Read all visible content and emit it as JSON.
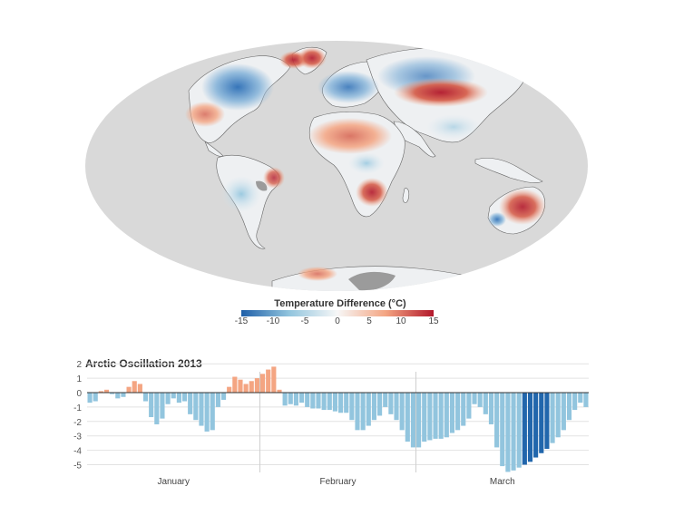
{
  "legend": {
    "title": "Temperature Difference (°C)",
    "ticks": [
      "-15",
      "-10",
      "-5",
      "0",
      "5",
      "10",
      "15"
    ],
    "colors": {
      "cold": "#1f5fa8",
      "neutral": "#f4f4f2",
      "warm": "#b2182b"
    }
  },
  "map": {
    "colors": {
      "ocean": "#d9d9d9",
      "land": "#eef0f2",
      "no_data": "#9b9b9b",
      "coast": "#666666"
    }
  },
  "chart_data": {
    "type": "bar",
    "title": "Arctic Oscillation 2013",
    "xlabel": "",
    "ylabel": "",
    "ylim": [
      -5.6,
      2.2
    ],
    "yticks": [
      "2",
      "1",
      "0",
      "-1",
      "-2",
      "-3",
      "-4",
      "-5"
    ],
    "month_labels": [
      "January",
      "February",
      "March"
    ],
    "month_start_index": [
      0,
      31,
      59
    ],
    "colors": {
      "positive": "#f4a582",
      "negative": "#92c5de",
      "highlight": "#2166ac"
    },
    "highlight_range": [
      78,
      82
    ],
    "values": [
      -0.7,
      -0.6,
      0.1,
      0.2,
      -0.1,
      -0.4,
      -0.3,
      0.4,
      0.8,
      0.6,
      -0.6,
      -1.7,
      -2.2,
      -1.8,
      -0.8,
      -0.4,
      -0.7,
      -0.6,
      -1.5,
      -1.9,
      -2.3,
      -2.7,
      -2.6,
      -1.0,
      -0.5,
      0.4,
      1.1,
      0.9,
      0.6,
      0.8,
      1.0,
      1.3,
      1.6,
      1.8,
      0.2,
      -0.9,
      -0.8,
      -0.9,
      -0.7,
      -1.0,
      -1.1,
      -1.1,
      -1.2,
      -1.2,
      -1.3,
      -1.4,
      -1.4,
      -1.9,
      -2.6,
      -2.6,
      -2.3,
      -1.9,
      -1.6,
      -1.0,
      -1.5,
      -1.9,
      -2.6,
      -3.4,
      -3.8,
      -3.8,
      -3.4,
      -3.3,
      -3.2,
      -3.2,
      -3.1,
      -2.8,
      -2.6,
      -2.3,
      -1.8,
      -0.8,
      -1.0,
      -1.5,
      -2.2,
      -3.8,
      -5.1,
      -5.5,
      -5.4,
      -5.2,
      -5.0,
      -4.8,
      -4.5,
      -4.2,
      -3.9,
      -3.5,
      -3.1,
      -2.6,
      -1.9,
      -1.2,
      -0.7,
      -1.0
    ]
  }
}
